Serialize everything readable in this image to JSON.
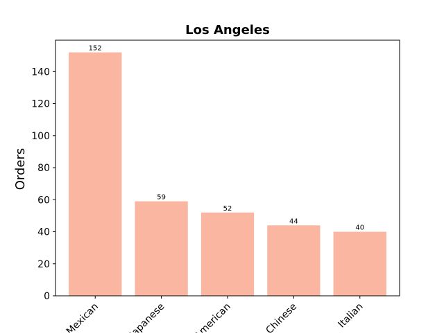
{
  "chart_data": {
    "type": "bar",
    "title": "Los Angeles",
    "xlabel": "",
    "ylabel": "Orders",
    "categories": [
      "Mexican",
      "Japanese",
      "American",
      "Chinese",
      "Italian"
    ],
    "values": [
      152,
      59,
      52,
      44,
      40
    ],
    "data_labels": [
      "152",
      "59",
      "52",
      "44",
      "40"
    ],
    "ylim": [
      0,
      159.6
    ],
    "yticks": [
      0,
      20,
      40,
      60,
      80,
      100,
      120,
      140
    ],
    "ytick_labels": [
      "0",
      "20",
      "40",
      "60",
      "80",
      "100",
      "120",
      "140"
    ],
    "grid": false,
    "legend": "none",
    "bar_color": "#fbb6a1",
    "axis_color": "#000000"
  }
}
